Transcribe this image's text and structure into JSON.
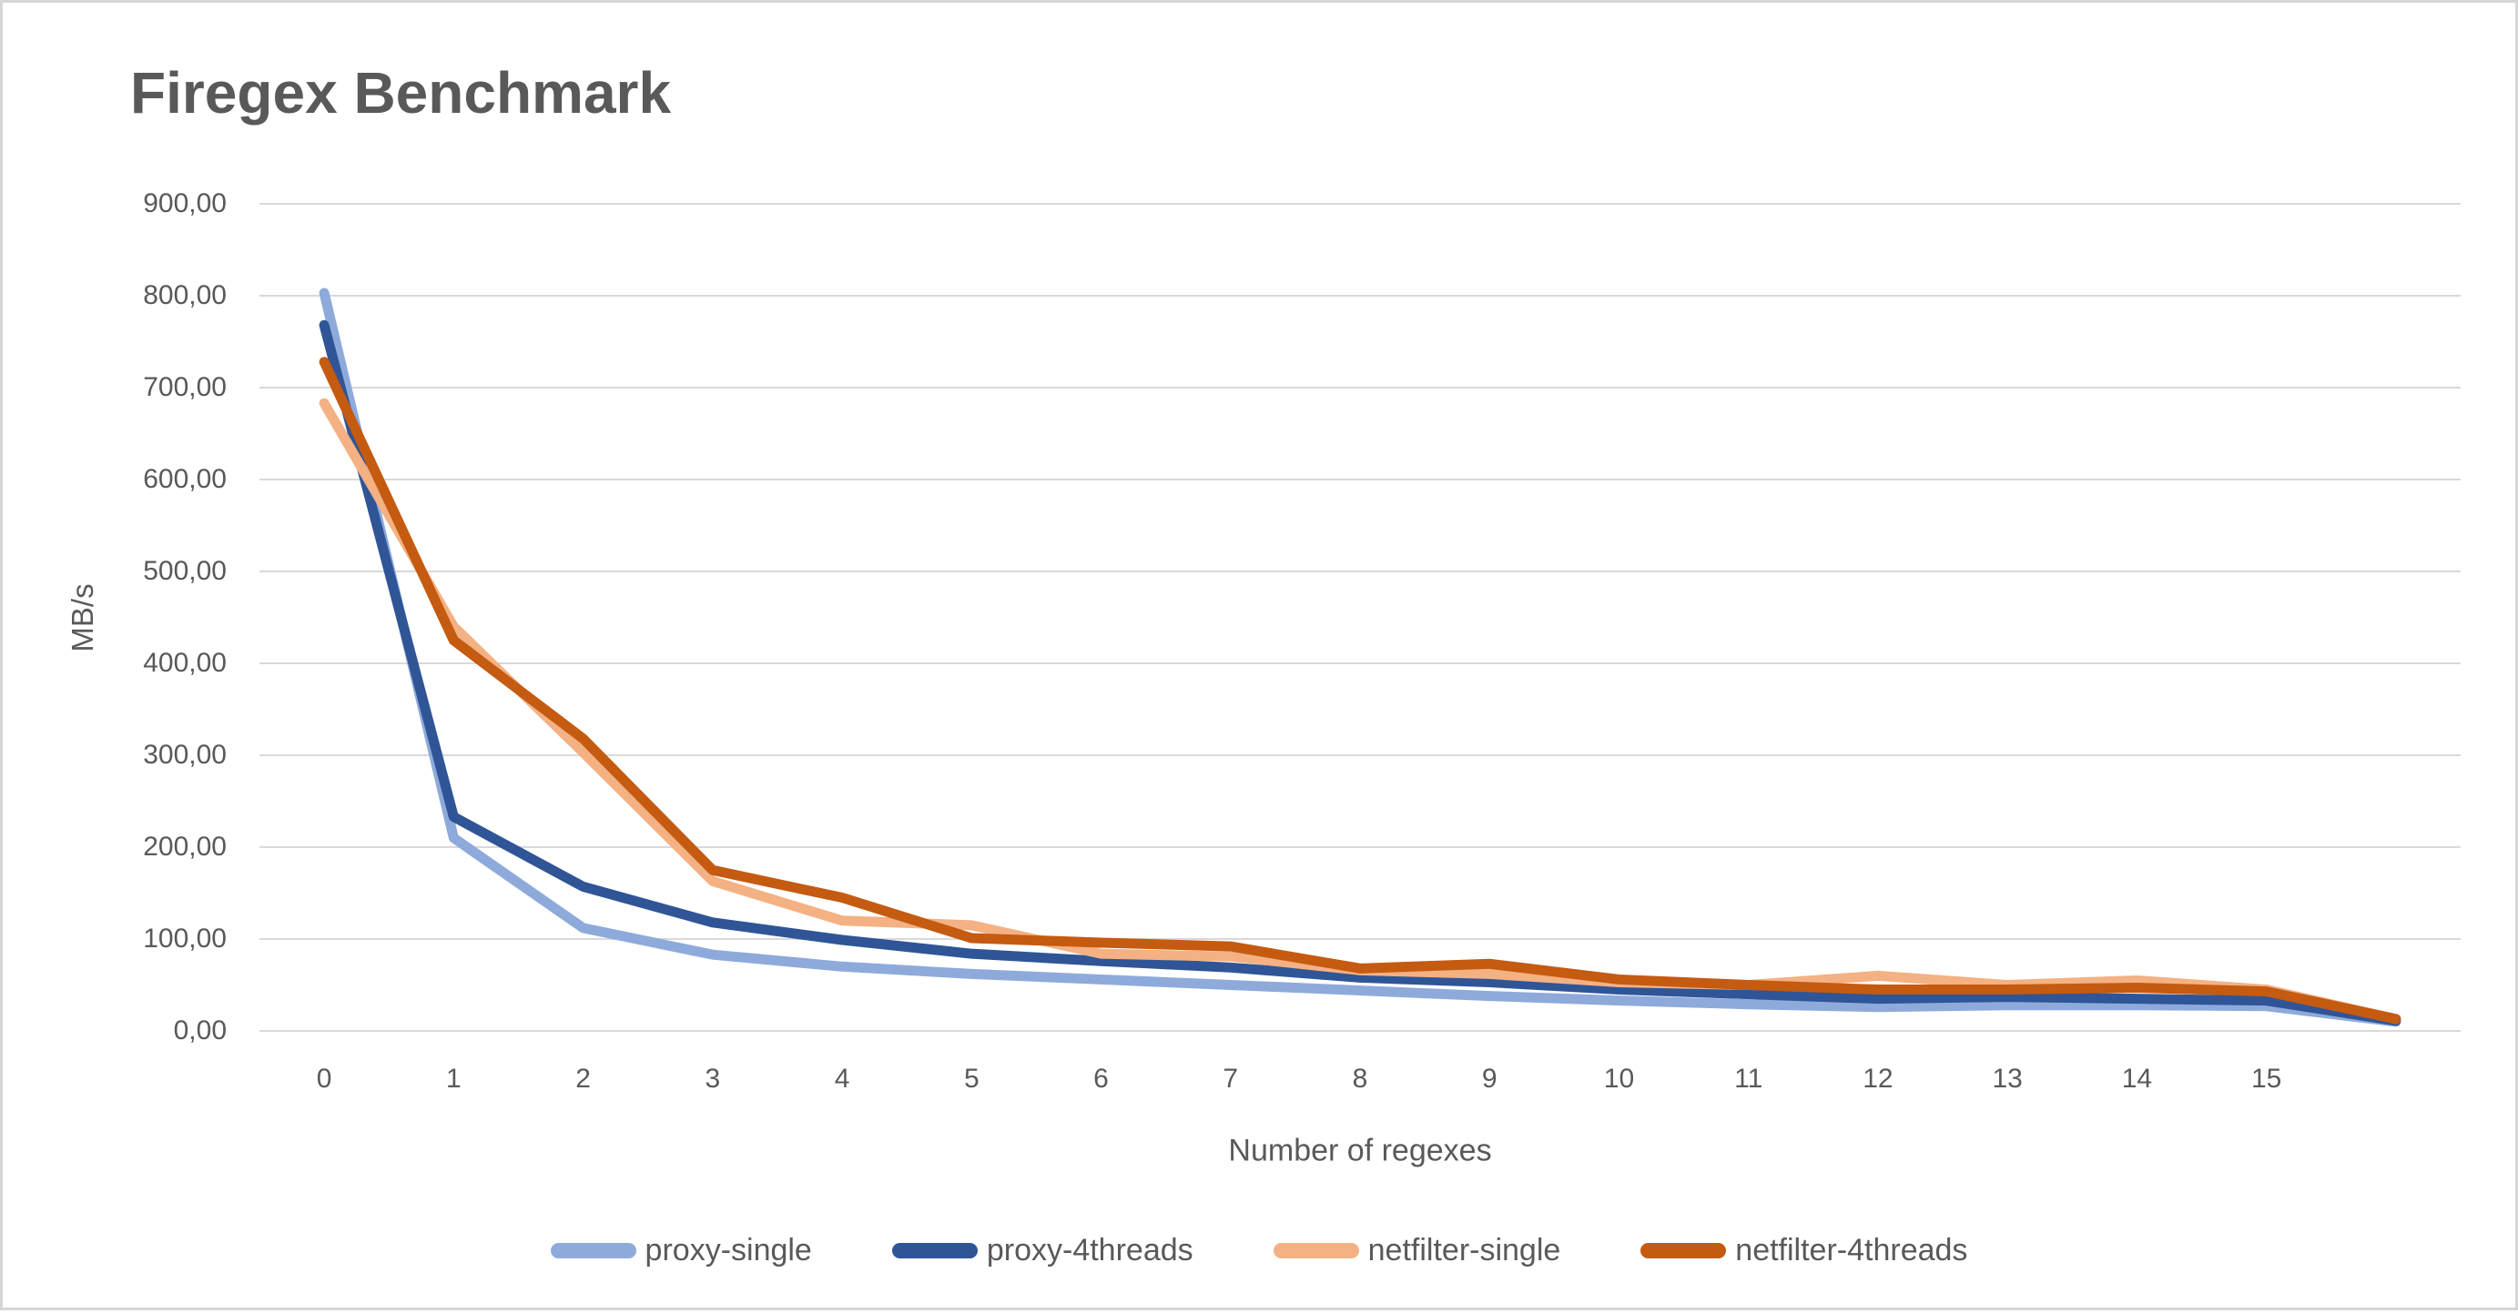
{
  "title": "Firegex Benchmark",
  "y_axis": {
    "title": "MB/s",
    "tick_labels": [
      "0,00",
      "100,00",
      "200,00",
      "300,00",
      "400,00",
      "500,00",
      "600,00",
      "700,00",
      "800,00",
      "900,00"
    ],
    "tick_values": [
      0,
      100,
      200,
      300,
      400,
      500,
      600,
      700,
      800,
      900
    ]
  },
  "x_axis": {
    "title": "Number of regexes",
    "tick_labels": [
      "0",
      "1",
      "2",
      "3",
      "4",
      "5",
      "6",
      "7",
      "8",
      "9",
      "10",
      "11",
      "12",
      "13",
      "14",
      "15"
    ]
  },
  "colors": {
    "title_text": "#595959",
    "axis_text": "#595959",
    "gridline": "#d9d9d9",
    "proxy_single": "#8EAADB",
    "proxy_4threads": "#2F5597",
    "netfilter_single": "#F4B183",
    "netfilter_4threads": "#C55A11"
  },
  "chart_data": {
    "type": "line",
    "title": "Firegex Benchmark",
    "xlabel": "Number of regexes",
    "ylabel": "MB/s",
    "ylim": [
      0,
      900
    ],
    "y_tick_step": 100,
    "grid": "horizontal",
    "legend_position": "bottom",
    "x": [
      0,
      1,
      2,
      3,
      4,
      5,
      6,
      7,
      8,
      9,
      10,
      11,
      12,
      13,
      14,
      15,
      16
    ],
    "x_tick_labels": [
      "0",
      "1",
      "2",
      "3",
      "4",
      "5",
      "6",
      "7",
      "8",
      "9",
      "10",
      "11",
      "12",
      "13",
      "14",
      "15"
    ],
    "series": [
      {
        "name": "proxy-single",
        "color": "#8EAADB",
        "values": [
          803,
          210,
          112,
          83,
          70,
          62,
          56,
          50,
          44,
          38,
          33,
          29,
          26,
          28,
          28,
          27,
          10
        ]
      },
      {
        "name": "proxy-4threads",
        "color": "#2F5597",
        "values": [
          768,
          233,
          157,
          118,
          99,
          84,
          76,
          69,
          58,
          53,
          45,
          40,
          35,
          37,
          35,
          33,
          11
        ]
      },
      {
        "name": "netfilter-single",
        "color": "#F4B183",
        "values": [
          683,
          440,
          303,
          163,
          120,
          115,
          84,
          81,
          66,
          62,
          53,
          50,
          60,
          50,
          55,
          45,
          13
        ]
      },
      {
        "name": "netfilter-4threads",
        "color": "#C55A11",
        "values": [
          728,
          425,
          318,
          175,
          145,
          101,
          96,
          92,
          68,
          73,
          56,
          50,
          45,
          45,
          47,
          43,
          13
        ]
      }
    ]
  }
}
